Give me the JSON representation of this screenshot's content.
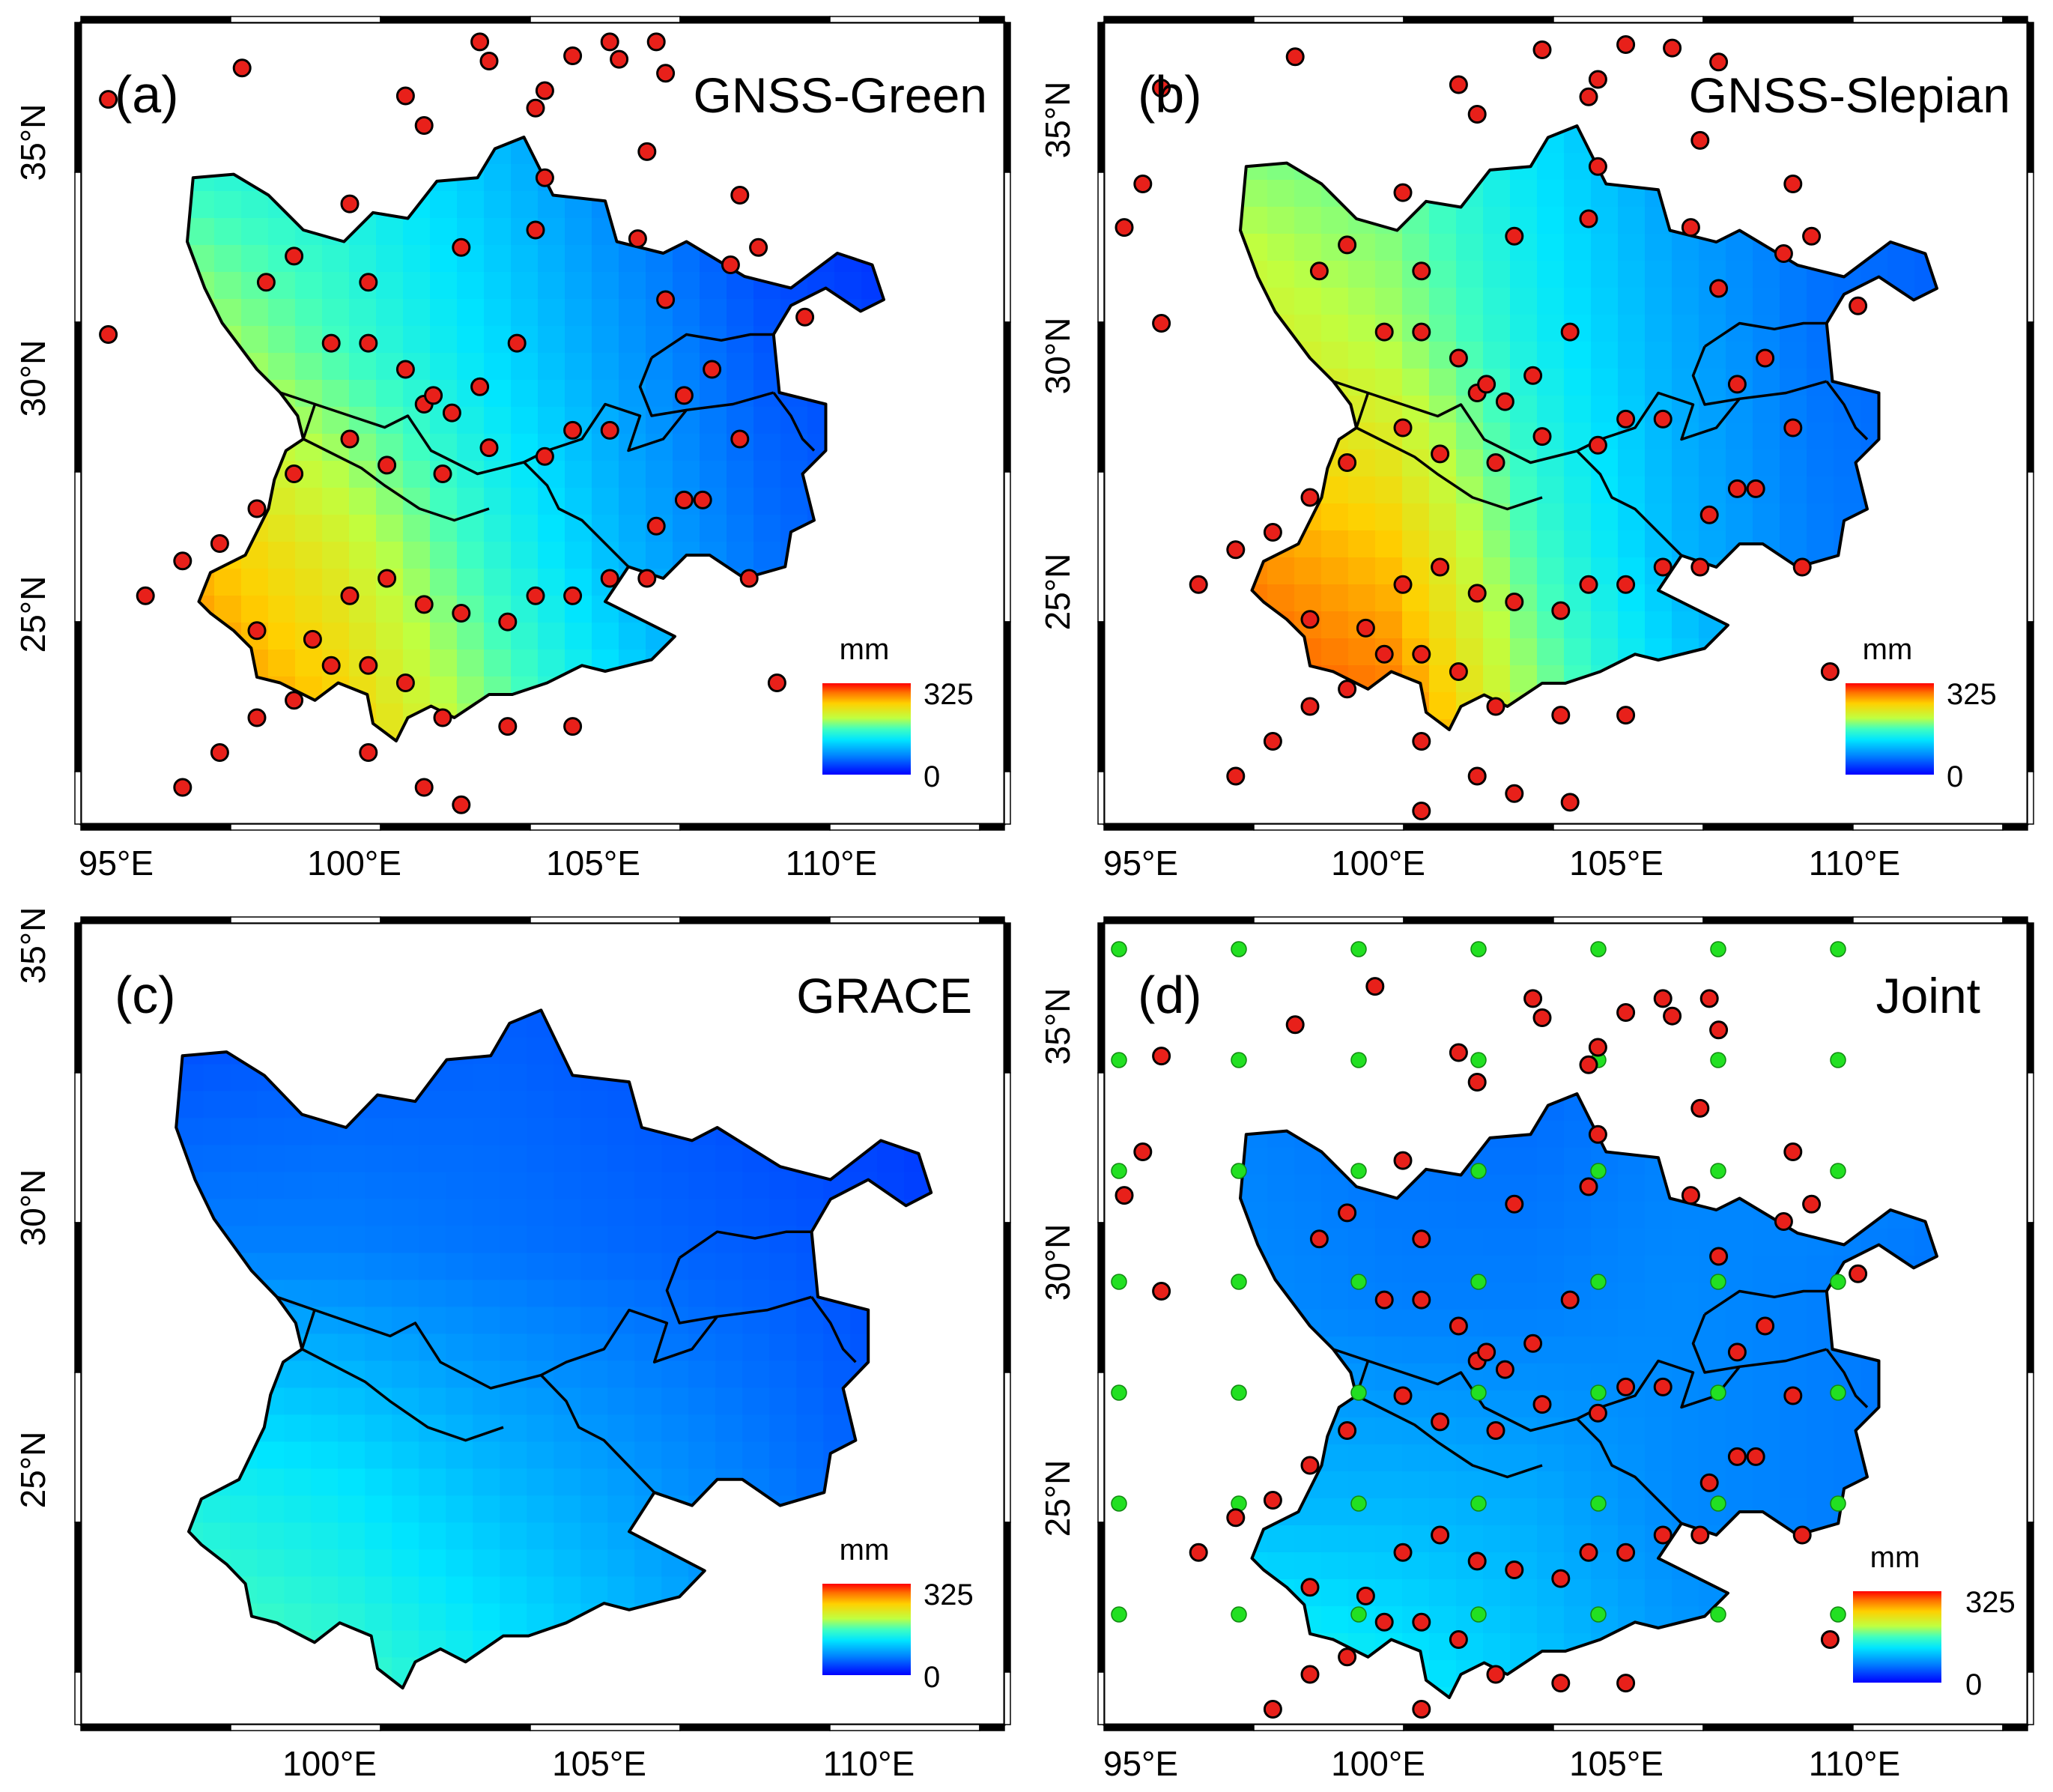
{
  "figure": {
    "colorbar_unit": "mm",
    "colorbar_max": "325",
    "colorbar_min": "0",
    "colors": {
      "station": "#e8201a",
      "grid_point": "#22e022",
      "outline": "#000000"
    }
  },
  "panels": [
    {
      "key": "a",
      "tag": "(a)",
      "title": "GNSS-Green",
      "lat_labels": [
        "35°N",
        "30°N",
        "25°N"
      ],
      "lon_labels": [
        "95°E",
        "100°E",
        "105°E",
        "110°E"
      ],
      "field_trend": [
        [
          0.45,
          0.42,
          0.32,
          0.2,
          0.1,
          0.05
        ],
        [
          0.62,
          0.5,
          0.38,
          0.25,
          0.14,
          0.1
        ],
        [
          0.8,
          0.68,
          0.48,
          0.3,
          0.18,
          0.12
        ],
        [
          0.92,
          0.8,
          0.6,
          0.4,
          0.22,
          0.15
        ]
      ]
    },
    {
      "key": "b",
      "tag": "(b)",
      "title": "GNSS-Slepian",
      "lat_labels": [
        "35°N",
        "30°N",
        "25°N"
      ],
      "lon_labels": [
        "95°E",
        "100°E",
        "105°E",
        "110°E"
      ],
      "field_trend": [
        [
          0.55,
          0.52,
          0.38,
          0.25,
          0.18,
          0.15
        ],
        [
          0.68,
          0.6,
          0.42,
          0.28,
          0.18,
          0.15
        ],
        [
          0.85,
          0.78,
          0.5,
          0.3,
          0.2,
          0.16
        ],
        [
          0.97,
          0.92,
          0.6,
          0.38,
          0.2,
          0.18
        ]
      ]
    },
    {
      "key": "c",
      "tag": "(c)",
      "title": "GRACE",
      "lat_labels": [
        "35°N",
        "30°N",
        "25°N"
      ],
      "lon_labels": [
        "100°E",
        "105°E",
        "110°E"
      ],
      "field_trend": [
        [
          0.12,
          0.14,
          0.15,
          0.13,
          0.1,
          0.08
        ],
        [
          0.2,
          0.2,
          0.18,
          0.16,
          0.14,
          0.1
        ],
        [
          0.42,
          0.38,
          0.3,
          0.24,
          0.18,
          0.12
        ],
        [
          0.55,
          0.5,
          0.42,
          0.32,
          0.22,
          0.15
        ]
      ]
    },
    {
      "key": "d",
      "tag": "(d)",
      "title": "Joint",
      "lat_labels": [
        "35°N",
        "30°N",
        "25°N"
      ],
      "lon_labels": [
        "95°E",
        "100°E",
        "105°E",
        "110°E"
      ],
      "field_trend": [
        [
          0.2,
          0.18,
          0.17,
          0.2,
          0.22,
          0.2
        ],
        [
          0.22,
          0.2,
          0.2,
          0.22,
          0.2,
          0.18
        ],
        [
          0.3,
          0.3,
          0.28,
          0.22,
          0.2,
          0.18
        ],
        [
          0.48,
          0.42,
          0.34,
          0.26,
          0.22,
          0.2
        ]
      ]
    }
  ]
}
